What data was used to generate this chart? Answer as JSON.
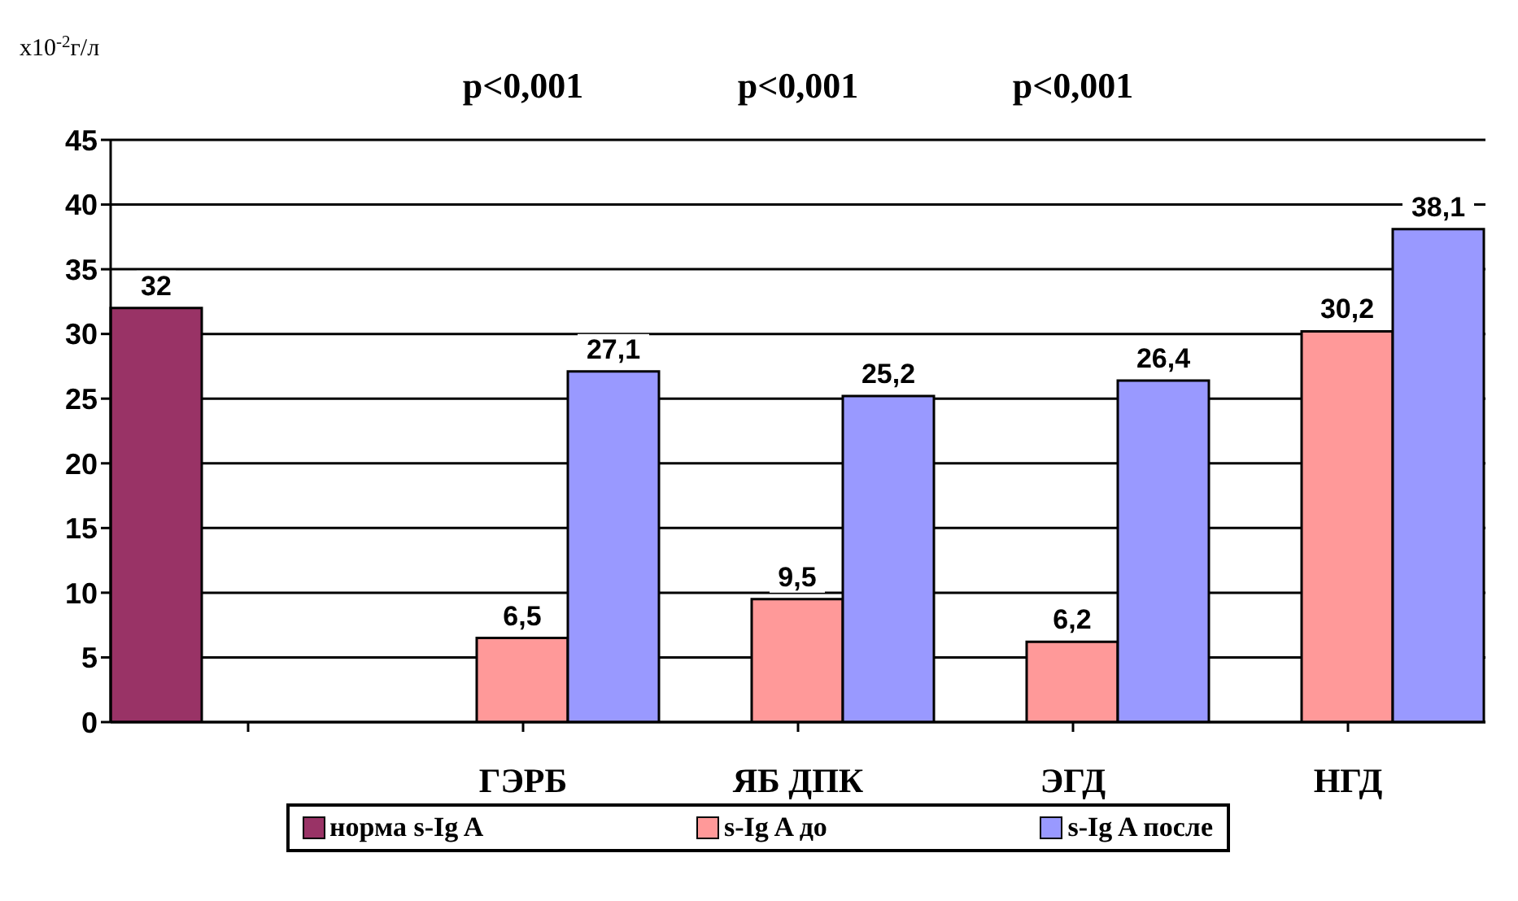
{
  "chart_data": {
    "type": "bar",
    "ylabel": "x10$^{-2}$г/л",
    "categories": [
      null,
      "ГЭРБ",
      "ЯБ ДПК",
      "ЭГД",
      "НГД"
    ],
    "series": [
      {
        "name": "норма s-Ig A",
        "color": "#993366",
        "values": [
          32,
          null,
          null,
          null,
          null
        ],
        "value_labels": [
          "32",
          null,
          null,
          null,
          null
        ]
      },
      {
        "name": "s-Ig A до",
        "color": "#ff9999",
        "values": [
          null,
          6.5,
          9.5,
          6.2,
          30.2
        ],
        "value_labels": [
          null,
          "6,5",
          "9,5",
          "6,2",
          "30,2"
        ]
      },
      {
        "name": "s-Ig A после",
        "color": "#9999ff",
        "values": [
          null,
          27.1,
          25.2,
          26.4,
          38.1
        ],
        "value_labels": [
          null,
          "27,1",
          "25,2",
          "26,4",
          "38,1"
        ]
      }
    ],
    "ylim": [
      0,
      45
    ],
    "yticks": [
      0,
      5,
      10,
      15,
      20,
      25,
      30,
      35,
      40,
      45
    ],
    "grid": "y",
    "legend": "bottom",
    "annotations": [
      "p<0,001",
      "p<0,001",
      "p<0,001"
    ]
  }
}
